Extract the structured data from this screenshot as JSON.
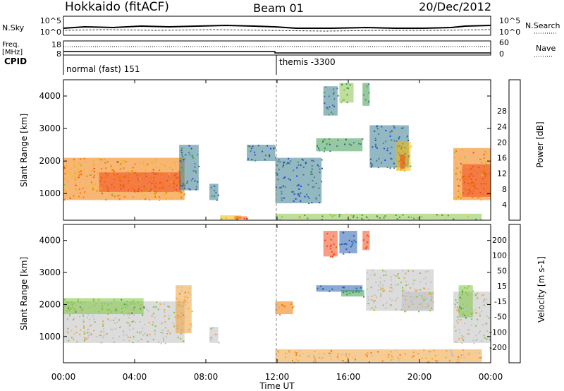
{
  "header": {
    "title": "Hokkaido (fitACF)",
    "beam": "Beam 01",
    "date": "20/Dec/2012"
  },
  "panels": {
    "nsky": {
      "left_label": "N.Sky",
      "right_label": "N.Search",
      "left_ticks": [
        "10^5",
        "10^0"
      ],
      "right_ticks": [
        "10^5",
        "10^0"
      ]
    },
    "freq": {
      "left_label_top": "Freq.",
      "left_label_unit": "[MHz]",
      "right_label": "Nave",
      "left_ticks": [
        "18",
        "8"
      ],
      "right_ticks": [
        "60",
        "0"
      ]
    },
    "cpid": {
      "label": "CPID",
      "modes": [
        {
          "name": "normal (fast) 151",
          "start_hour": 0
        },
        {
          "name": "themis -3300",
          "start_hour": 12
        }
      ]
    }
  },
  "chart_data": [
    {
      "type": "heatmap",
      "title": "Power",
      "xlabel": "Time UT",
      "ylabel": "Slant Range [km]",
      "colorbar_label": "Power [dB]",
      "xlim": [
        0,
        24
      ],
      "ylim": [
        180,
        4500
      ],
      "x_ticks": [
        "00:00",
        "04:00",
        "08:00",
        "12:00",
        "16:00",
        "20:00",
        "00:00"
      ],
      "y_ticks": [
        1000,
        2000,
        3000,
        4000
      ],
      "colorbar_ticks": [
        4,
        8,
        12,
        16,
        20,
        24,
        28
      ],
      "colorbar_colors": [
        "#1a3cff",
        "#2b52b4",
        "#3b7d8e",
        "#3f9a55",
        "#8bc34a",
        "#f5b800",
        "#f07a00",
        "#f24a1c",
        "#ff1a00"
      ],
      "regions": [
        {
          "t0": 0.0,
          "t1": 6.8,
          "r0": 800,
          "r1": 2100,
          "v": 24
        },
        {
          "t0": 2.0,
          "t1": 6.6,
          "r0": 1050,
          "r1": 1650,
          "v": 28
        },
        {
          "t0": 6.5,
          "t1": 7.6,
          "r0": 1100,
          "r1": 2500,
          "v": 10
        },
        {
          "t0": 8.2,
          "t1": 8.7,
          "r0": 800,
          "r1": 1300,
          "v": 8
        },
        {
          "t0": 8.8,
          "t1": 10.0,
          "r0": 200,
          "r1": 330,
          "v": 20
        },
        {
          "t0": 9.6,
          "t1": 10.3,
          "r0": 220,
          "r1": 300,
          "v": 28
        },
        {
          "t0": 10.3,
          "t1": 11.9,
          "r0": 2000,
          "r1": 2500,
          "v": 8
        },
        {
          "t0": 11.9,
          "t1": 23.5,
          "r0": 200,
          "r1": 380,
          "v": 16
        },
        {
          "t0": 11.9,
          "t1": 14.5,
          "r0": 700,
          "r1": 2100,
          "v": 8
        },
        {
          "t0": 14.6,
          "t1": 15.4,
          "r0": 3400,
          "r1": 4300,
          "v": 10
        },
        {
          "t0": 15.5,
          "t1": 16.3,
          "r0": 3800,
          "r1": 4400,
          "v": 16
        },
        {
          "t0": 16.8,
          "t1": 17.2,
          "r0": 3700,
          "r1": 4400,
          "v": 12
        },
        {
          "t0": 14.2,
          "t1": 16.8,
          "r0": 2300,
          "r1": 2700,
          "v": 12
        },
        {
          "t0": 17.2,
          "t1": 19.4,
          "r0": 1800,
          "r1": 3100,
          "v": 8
        },
        {
          "t0": 18.7,
          "t1": 19.5,
          "r0": 1700,
          "r1": 2600,
          "v": 20
        },
        {
          "t0": 18.9,
          "t1": 19.2,
          "r0": 1750,
          "r1": 2200,
          "v": 28
        },
        {
          "t0": 21.9,
          "t1": 24.0,
          "r0": 800,
          "r1": 2400,
          "v": 24
        },
        {
          "t0": 22.4,
          "t1": 24.0,
          "r0": 900,
          "r1": 1900,
          "v": 28
        }
      ]
    },
    {
      "type": "heatmap",
      "title": "Velocity",
      "xlabel": "Time UT",
      "ylabel": "Slant Range [km]",
      "colorbar_label": "Velocity [m s-1]",
      "xlim": [
        0,
        24
      ],
      "ylim": [
        180,
        4500
      ],
      "x_ticks": [
        "00:00",
        "04:00",
        "08:00",
        "12:00",
        "16:00",
        "20:00",
        "00:00"
      ],
      "y_ticks": [
        1000,
        2000,
        3000,
        4000
      ],
      "colorbar_ticks": [
        200,
        100,
        50,
        15,
        -15,
        -50,
        -100,
        -200
      ],
      "colorbar_colors": [
        "#1f3aff",
        "#2a60b0",
        "#3f9a55",
        "#80c640",
        "#c0c0c0",
        "#f0a33a",
        "#f07a00",
        "#f24a1c",
        "#ff1a00"
      ],
      "regions": [
        {
          "t0": 0.0,
          "t1": 6.8,
          "r0": 800,
          "r1": 2100,
          "v": 0
        },
        {
          "t0": 0.0,
          "t1": 4.5,
          "r0": 1700,
          "r1": 2200,
          "v": 30
        },
        {
          "t0": 6.3,
          "t1": 7.2,
          "r0": 1100,
          "r1": 2600,
          "v": -30
        },
        {
          "t0": 8.2,
          "t1": 8.7,
          "r0": 800,
          "r1": 1300,
          "v": 0
        },
        {
          "t0": 11.9,
          "t1": 12.9,
          "r0": 1700,
          "r1": 2100,
          "v": -70
        },
        {
          "t0": 11.9,
          "t1": 23.5,
          "r0": 200,
          "r1": 600,
          "v": -30
        },
        {
          "t0": 14.6,
          "t1": 15.4,
          "r0": 3500,
          "r1": 4300,
          "v": -150
        },
        {
          "t0": 15.5,
          "t1": 16.5,
          "r0": 3600,
          "r1": 4300,
          "v": 150
        },
        {
          "t0": 16.8,
          "t1": 17.2,
          "r0": 3700,
          "r1": 4300,
          "v": -150
        },
        {
          "t0": 14.2,
          "t1": 16.8,
          "r0": 2400,
          "r1": 2600,
          "v": 150
        },
        {
          "t0": 15.6,
          "t1": 16.9,
          "r0": 2250,
          "r1": 2450,
          "v": 70
        },
        {
          "t0": 17.0,
          "t1": 20.8,
          "r0": 1800,
          "r1": 3100,
          "v": 0
        },
        {
          "t0": 19.0,
          "t1": 20.8,
          "r0": 1800,
          "r1": 2400,
          "v": 0
        },
        {
          "t0": 21.9,
          "t1": 24.0,
          "r0": 800,
          "r1": 2400,
          "v": 0
        },
        {
          "t0": 22.2,
          "t1": 23.0,
          "r0": 1600,
          "r1": 2600,
          "v": 30
        }
      ]
    }
  ]
}
